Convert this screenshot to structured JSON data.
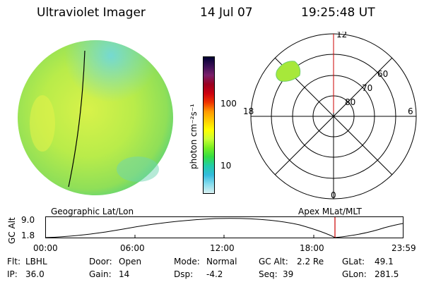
{
  "header": {
    "title": "Ultraviolet Imager",
    "date": "14 Jul 07",
    "time": "19:25:48 UT"
  },
  "colorbar": {
    "unit_label": "photon cm⁻²s⁻¹",
    "tick_labels": [
      "100",
      "10"
    ],
    "colors": [
      "#000033",
      "#3a0f55",
      "#7a1f6a",
      "#9a0020",
      "#cc0010",
      "#ee3300",
      "#ff9900",
      "#ffcc00",
      "#ffff00",
      "#ccff33",
      "#77ee22",
      "#33dd44",
      "#22ccaa",
      "#33bbdd",
      "#88ddee",
      "#d8f0f0"
    ]
  },
  "polar_plot": {
    "mlt_labels": {
      "top": "12",
      "left": "18",
      "right": "6",
      "bottom": "0"
    },
    "mlat_labels": [
      "60",
      "70",
      "80"
    ]
  },
  "timeline": {
    "left_title": "Geographic Lat/Lon",
    "right_title": "Apex MLat/MLT",
    "y_label": "GC Alt",
    "y_ticks": [
      "9.0",
      "1.8"
    ],
    "x_ticks": [
      "00:00",
      "06:00",
      "12:00",
      "18:00",
      "23:59"
    ],
    "marker_color": "#cc0000"
  },
  "info_rows": [
    {
      "flt_label": "Flt:",
      "flt_value": "LBHL",
      "door_label": "Door:",
      "door_value": "Open",
      "mode_label": "Mode:",
      "mode_value": "Normal",
      "gcalt_label": "GC Alt:",
      "gcalt_value": "2.2 Re",
      "glat_label": "GLat:",
      "glat_value": "49.1"
    },
    {
      "ip_label": "IP:",
      "ip_value": "36.0",
      "gain_label": "Gain:",
      "gain_value": "14",
      "dsp_label": "Dsp:",
      "dsp_value": "-4.2",
      "seq_label": "Seq:",
      "seq_value": "39",
      "glon_label": "GLon:",
      "glon_value": "281.5"
    }
  ]
}
